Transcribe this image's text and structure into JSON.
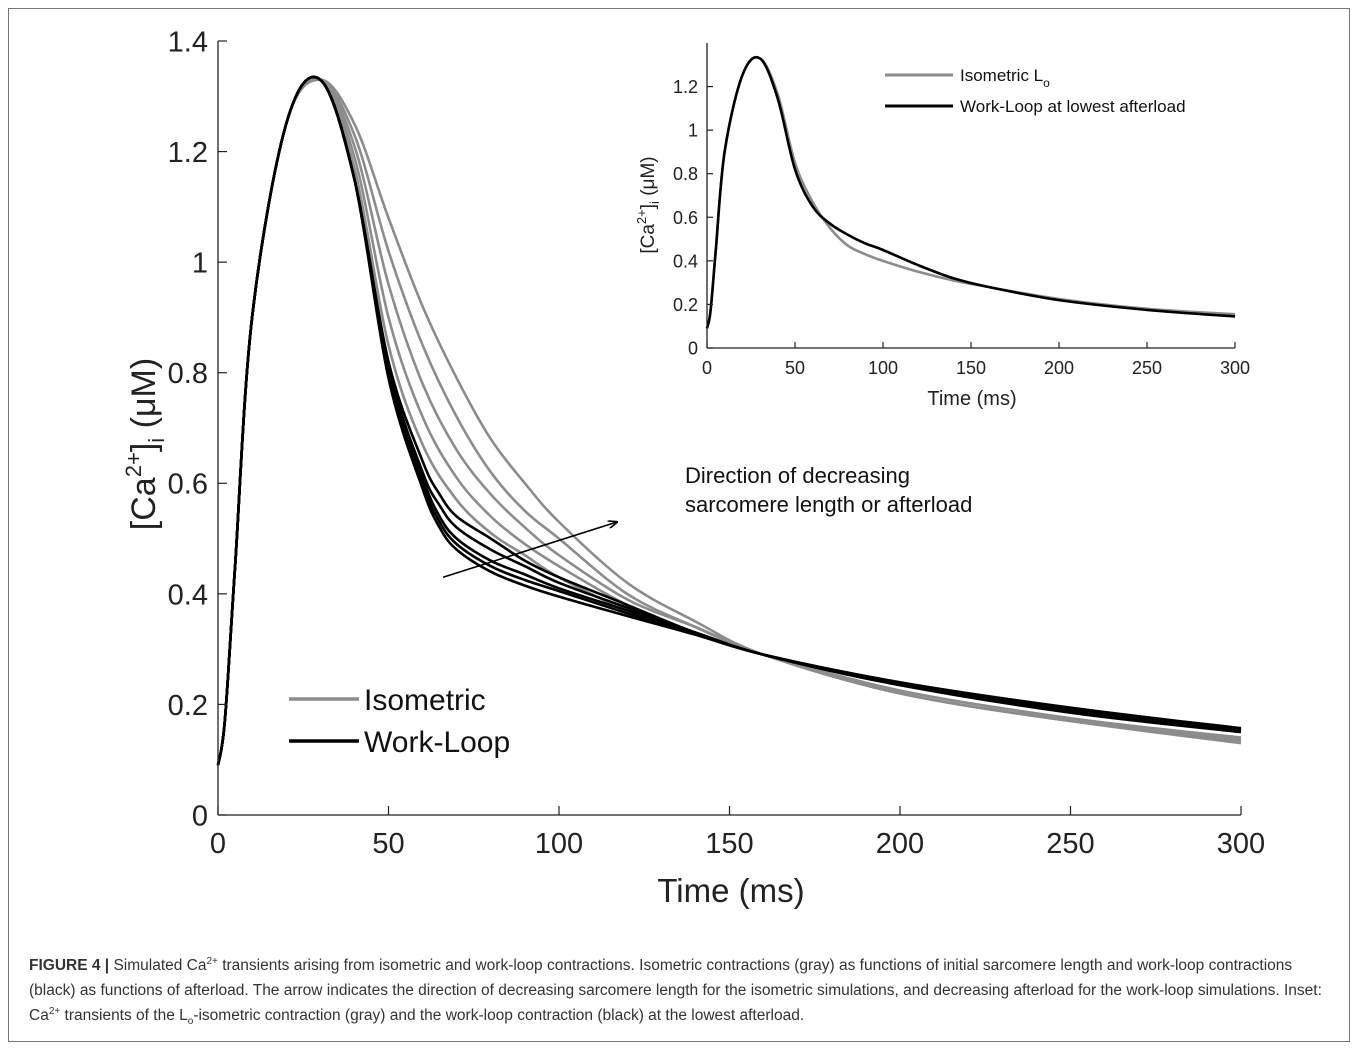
{
  "colors": {
    "isometric": "#8c8c8c",
    "work_loop": "#000000",
    "axis": "#222222",
    "border": "#777777"
  },
  "chart_data": [
    {
      "type": "line",
      "panel": "main",
      "xlabel": "Time (ms)",
      "ylabel_parts": {
        "prefix": "[Ca",
        "sup": "2+",
        "mid": "]",
        "sub": "i",
        "unit": " (μM)"
      },
      "xlim": [
        0,
        300
      ],
      "ylim": [
        0,
        1.4
      ],
      "xticks": [
        0,
        50,
        100,
        150,
        200,
        250,
        300
      ],
      "xtick_labels": [
        "0",
        "50",
        "100",
        "150",
        "200",
        "250",
        "300"
      ],
      "yticks": [
        0,
        0.2,
        0.4,
        0.6,
        0.8,
        1,
        1.2,
        1.4
      ],
      "ytick_labels": [
        "0",
        "0.2",
        "0.4",
        "0.6",
        "0.8",
        "1",
        "1.2",
        "1.4"
      ],
      "grid": false,
      "legend": {
        "placement": "bottom-left",
        "entries": [
          "Isometric",
          "Work-Loop"
        ]
      },
      "annotation": {
        "line1": "Direction of decreasing",
        "line2": "sarcomere length or afterload",
        "arrow_from": [
          66,
          0.43
        ],
        "arrow_to": [
          117,
          0.53
        ]
      },
      "series": [
        {
          "name": "Isometric",
          "color": "#8c8c8c",
          "x": [
            0,
            2,
            5,
            10,
            20,
            30,
            40,
            50,
            60,
            70,
            80,
            90,
            100,
            120,
            140,
            160,
            200,
            250,
            300
          ],
          "y": [
            0.09,
            0.17,
            0.45,
            0.9,
            1.25,
            1.33,
            1.25,
            1.08,
            0.92,
            0.79,
            0.68,
            0.6,
            0.53,
            0.42,
            0.35,
            0.29,
            0.22,
            0.17,
            0.13
          ]
        },
        {
          "color": "#8c8c8c",
          "x": [
            0,
            2,
            5,
            10,
            20,
            30,
            40,
            50,
            60,
            70,
            80,
            90,
            100,
            120,
            140,
            160,
            200,
            250,
            300
          ],
          "y": [
            0.09,
            0.17,
            0.45,
            0.9,
            1.25,
            1.33,
            1.23,
            1.02,
            0.85,
            0.72,
            0.62,
            0.55,
            0.5,
            0.4,
            0.34,
            0.29,
            0.22,
            0.17,
            0.135
          ]
        },
        {
          "color": "#8c8c8c",
          "x": [
            0,
            2,
            5,
            10,
            20,
            30,
            40,
            50,
            60,
            70,
            80,
            90,
            100,
            120,
            140,
            160,
            200,
            250,
            300
          ],
          "y": [
            0.09,
            0.17,
            0.45,
            0.9,
            1.25,
            1.33,
            1.21,
            0.96,
            0.78,
            0.66,
            0.58,
            0.52,
            0.47,
            0.39,
            0.34,
            0.29,
            0.22,
            0.17,
            0.135
          ]
        },
        {
          "color": "#8c8c8c",
          "x": [
            0,
            2,
            5,
            10,
            20,
            30,
            40,
            50,
            60,
            70,
            80,
            90,
            100,
            120,
            140,
            160,
            200,
            250,
            300
          ],
          "y": [
            0.09,
            0.17,
            0.45,
            0.9,
            1.25,
            1.33,
            1.19,
            0.9,
            0.72,
            0.61,
            0.54,
            0.49,
            0.45,
            0.38,
            0.33,
            0.29,
            0.225,
            0.175,
            0.138
          ]
        },
        {
          "color": "#8c8c8c",
          "x": [
            0,
            2,
            5,
            10,
            20,
            30,
            40,
            50,
            60,
            70,
            80,
            90,
            100,
            120,
            140,
            160,
            200,
            250,
            300
          ],
          "y": [
            0.09,
            0.17,
            0.45,
            0.9,
            1.25,
            1.33,
            1.17,
            0.85,
            0.67,
            0.57,
            0.51,
            0.47,
            0.43,
            0.37,
            0.33,
            0.29,
            0.225,
            0.175,
            0.14
          ]
        },
        {
          "name": "Work-Loop",
          "color": "#000000",
          "x": [
            0,
            2,
            5,
            10,
            20,
            30,
            40,
            50,
            60,
            65,
            70,
            80,
            90,
            100,
            120,
            140,
            160,
            200,
            250,
            300
          ],
          "y": [
            0.09,
            0.17,
            0.45,
            0.9,
            1.25,
            1.33,
            1.15,
            0.82,
            0.64,
            0.58,
            0.54,
            0.5,
            0.46,
            0.43,
            0.38,
            0.33,
            0.29,
            0.235,
            0.185,
            0.15
          ]
        },
        {
          "color": "#000000",
          "x": [
            0,
            2,
            5,
            10,
            20,
            30,
            40,
            50,
            60,
            65,
            70,
            80,
            90,
            100,
            120,
            140,
            160,
            200,
            250,
            300
          ],
          "y": [
            0.09,
            0.17,
            0.45,
            0.9,
            1.25,
            1.33,
            1.15,
            0.81,
            0.62,
            0.56,
            0.52,
            0.48,
            0.45,
            0.42,
            0.375,
            0.33,
            0.29,
            0.235,
            0.188,
            0.152
          ]
        },
        {
          "color": "#000000",
          "x": [
            0,
            2,
            5,
            10,
            20,
            30,
            40,
            50,
            60,
            65,
            70,
            80,
            90,
            100,
            120,
            140,
            160,
            200,
            250,
            300
          ],
          "y": [
            0.09,
            0.17,
            0.45,
            0.9,
            1.25,
            1.33,
            1.15,
            0.8,
            0.61,
            0.54,
            0.5,
            0.46,
            0.435,
            0.41,
            0.37,
            0.33,
            0.29,
            0.237,
            0.19,
            0.154
          ]
        },
        {
          "color": "#000000",
          "x": [
            0,
            2,
            5,
            10,
            20,
            30,
            40,
            50,
            60,
            65,
            70,
            80,
            90,
            100,
            120,
            140,
            160,
            200,
            250,
            300
          ],
          "y": [
            0.09,
            0.17,
            0.45,
            0.9,
            1.25,
            1.33,
            1.15,
            0.8,
            0.6,
            0.53,
            0.49,
            0.45,
            0.425,
            0.405,
            0.365,
            0.328,
            0.29,
            0.238,
            0.192,
            0.155
          ]
        },
        {
          "color": "#000000",
          "x": [
            0,
            2,
            5,
            10,
            20,
            30,
            40,
            50,
            60,
            65,
            70,
            80,
            90,
            100,
            120,
            140,
            160,
            200,
            250,
            300
          ],
          "y": [
            0.09,
            0.17,
            0.45,
            0.9,
            1.25,
            1.33,
            1.15,
            0.79,
            0.59,
            0.52,
            0.48,
            0.44,
            0.415,
            0.395,
            0.36,
            0.326,
            0.29,
            0.24,
            0.194,
            0.157
          ]
        }
      ]
    },
    {
      "type": "line",
      "panel": "inset",
      "xlabel": "Time (ms)",
      "ylabel_parts": {
        "prefix": "[Ca",
        "sup": "2+",
        "mid": "]",
        "sub": "i",
        "unit": " (μM)"
      },
      "xlim": [
        0,
        300
      ],
      "ylim": [
        0,
        1.4
      ],
      "xticks": [
        0,
        50,
        100,
        150,
        200,
        250,
        300
      ],
      "xtick_labels": [
        "0",
        "50",
        "100",
        "150",
        "200",
        "250",
        "300"
      ],
      "yticks": [
        0,
        0.2,
        0.4,
        0.6,
        0.8,
        1,
        1.2
      ],
      "ytick_labels": [
        "0",
        "0.2",
        "0.4",
        "0.6",
        "0.8",
        "1",
        "1.2"
      ],
      "grid": false,
      "legend": {
        "placement": "top-right",
        "entries": [
          {
            "main": "Isometric L",
            "sub": "o"
          },
          {
            "main": "Work-Loop at lowest afterload",
            "sub": ""
          }
        ]
      },
      "series": [
        {
          "color": "#8c8c8c",
          "x": [
            0,
            2,
            5,
            10,
            20,
            30,
            40,
            50,
            60,
            70,
            80,
            90,
            100,
            120,
            140,
            160,
            200,
            250,
            300
          ],
          "y": [
            0.09,
            0.17,
            0.45,
            0.9,
            1.25,
            1.33,
            1.17,
            0.85,
            0.67,
            0.55,
            0.47,
            0.43,
            0.4,
            0.35,
            0.31,
            0.28,
            0.225,
            0.18,
            0.155
          ]
        },
        {
          "color": "#000000",
          "x": [
            0,
            2,
            5,
            10,
            20,
            30,
            40,
            50,
            60,
            70,
            80,
            90,
            100,
            120,
            140,
            160,
            200,
            250,
            300
          ],
          "y": [
            0.09,
            0.17,
            0.45,
            0.9,
            1.25,
            1.33,
            1.15,
            0.82,
            0.65,
            0.57,
            0.52,
            0.48,
            0.45,
            0.38,
            0.32,
            0.28,
            0.22,
            0.175,
            0.145
          ]
        }
      ]
    }
  ],
  "caption": {
    "label": "FIGURE 4 |",
    "seg1": " Simulated Ca",
    "sup1": "2+",
    "seg2": " transients arising from isometric and work-loop contractions. Isometric contractions (gray) as functions of initial sarcomere length and work-loop contractions (black) as functions of afterload. The arrow indicates the direction of decreasing sarcomere length for the isometric simulations, and decreasing afterload for the work-loop simulations. Inset: Ca",
    "sup2": "2+",
    "seg3": " transients of the L",
    "sub1": "o",
    "seg4": "-isometric contraction (gray) and the work-loop contraction (black) at the lowest afterload."
  }
}
